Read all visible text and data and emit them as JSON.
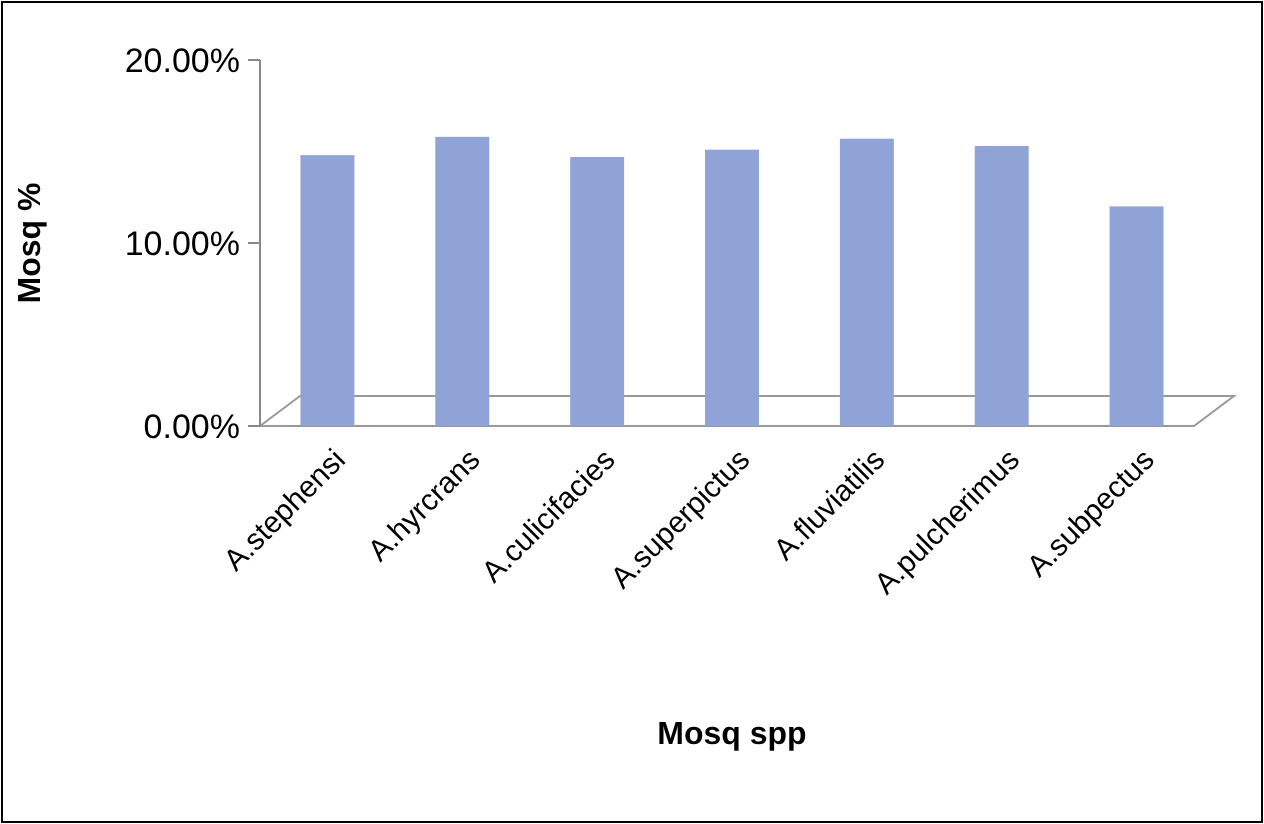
{
  "chart_data": {
    "type": "bar",
    "xlabel": "Mosq spp",
    "ylabel": "Mosq %",
    "categories": [
      "A.stephensi",
      "A.hyrcrans",
      "A.culicifacies",
      "A.superpictus",
      "A.fluviatilis",
      "A.pulcherimus",
      "A.subpectus"
    ],
    "values": [
      14.8,
      15.8,
      14.7,
      15.1,
      15.7,
      15.3,
      12.0
    ],
    "color": "#8fa3d6",
    "ylim": [
      0,
      20
    ],
    "yticks": [
      {
        "value": 0,
        "label": "0.00%"
      },
      {
        "value": 10,
        "label": "10.00%"
      },
      {
        "value": 20,
        "label": "20.00%"
      }
    ],
    "grid": false
  }
}
